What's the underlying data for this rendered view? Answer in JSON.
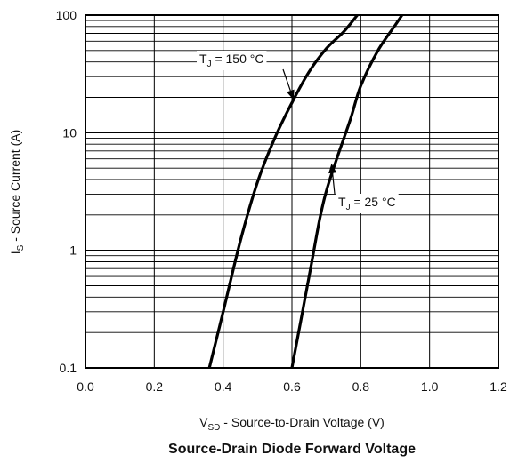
{
  "chart_data": {
    "type": "line",
    "title": "Source-Drain Diode Forward Voltage",
    "xlabel": {
      "symbol": "V",
      "subscript": "SD",
      "text": " - Source-to-Drain Voltage (V)"
    },
    "ylabel": {
      "symbol": "I",
      "subscript": "S",
      "text": " - Source Current (A)"
    },
    "xlim": [
      0.0,
      1.2
    ],
    "ylim": [
      0.1,
      100
    ],
    "yscale": "log",
    "grid": true,
    "x_tick_labels": [
      "0.0",
      "0.2",
      "0.4",
      "0.6",
      "0.8",
      "1.0",
      "1.2"
    ],
    "y_tick_labels": [
      "0.1",
      "1",
      "10",
      "100"
    ],
    "series": [
      {
        "name": "T_J = 150 °C",
        "x": [
          0.36,
          0.4,
          0.45,
          0.5,
          0.55,
          0.6,
          0.65,
          0.7,
          0.75,
          0.79
        ],
        "y": [
          0.1,
          0.3,
          1.2,
          3.8,
          9.0,
          18.0,
          33.0,
          52.0,
          72.0,
          100.0
        ]
      },
      {
        "name": "T_J = 25 °C",
        "x": [
          0.6,
          0.65,
          0.68,
          0.7,
          0.73,
          0.77,
          0.8,
          0.85,
          0.9,
          0.92
        ],
        "y": [
          0.1,
          0.6,
          1.8,
          3.2,
          6.0,
          13.0,
          25.0,
          50.0,
          82.0,
          100.0
        ]
      }
    ],
    "annotations": [
      {
        "symbol": "T",
        "subscript": "J",
        "text": " = 150 °C",
        "series": 0,
        "point": [
          0.605,
          19.0
        ]
      },
      {
        "symbol": "T",
        "subscript": "J",
        "text": " = 25 °C",
        "series": 1,
        "point": [
          0.715,
          5.5
        ]
      }
    ]
  }
}
